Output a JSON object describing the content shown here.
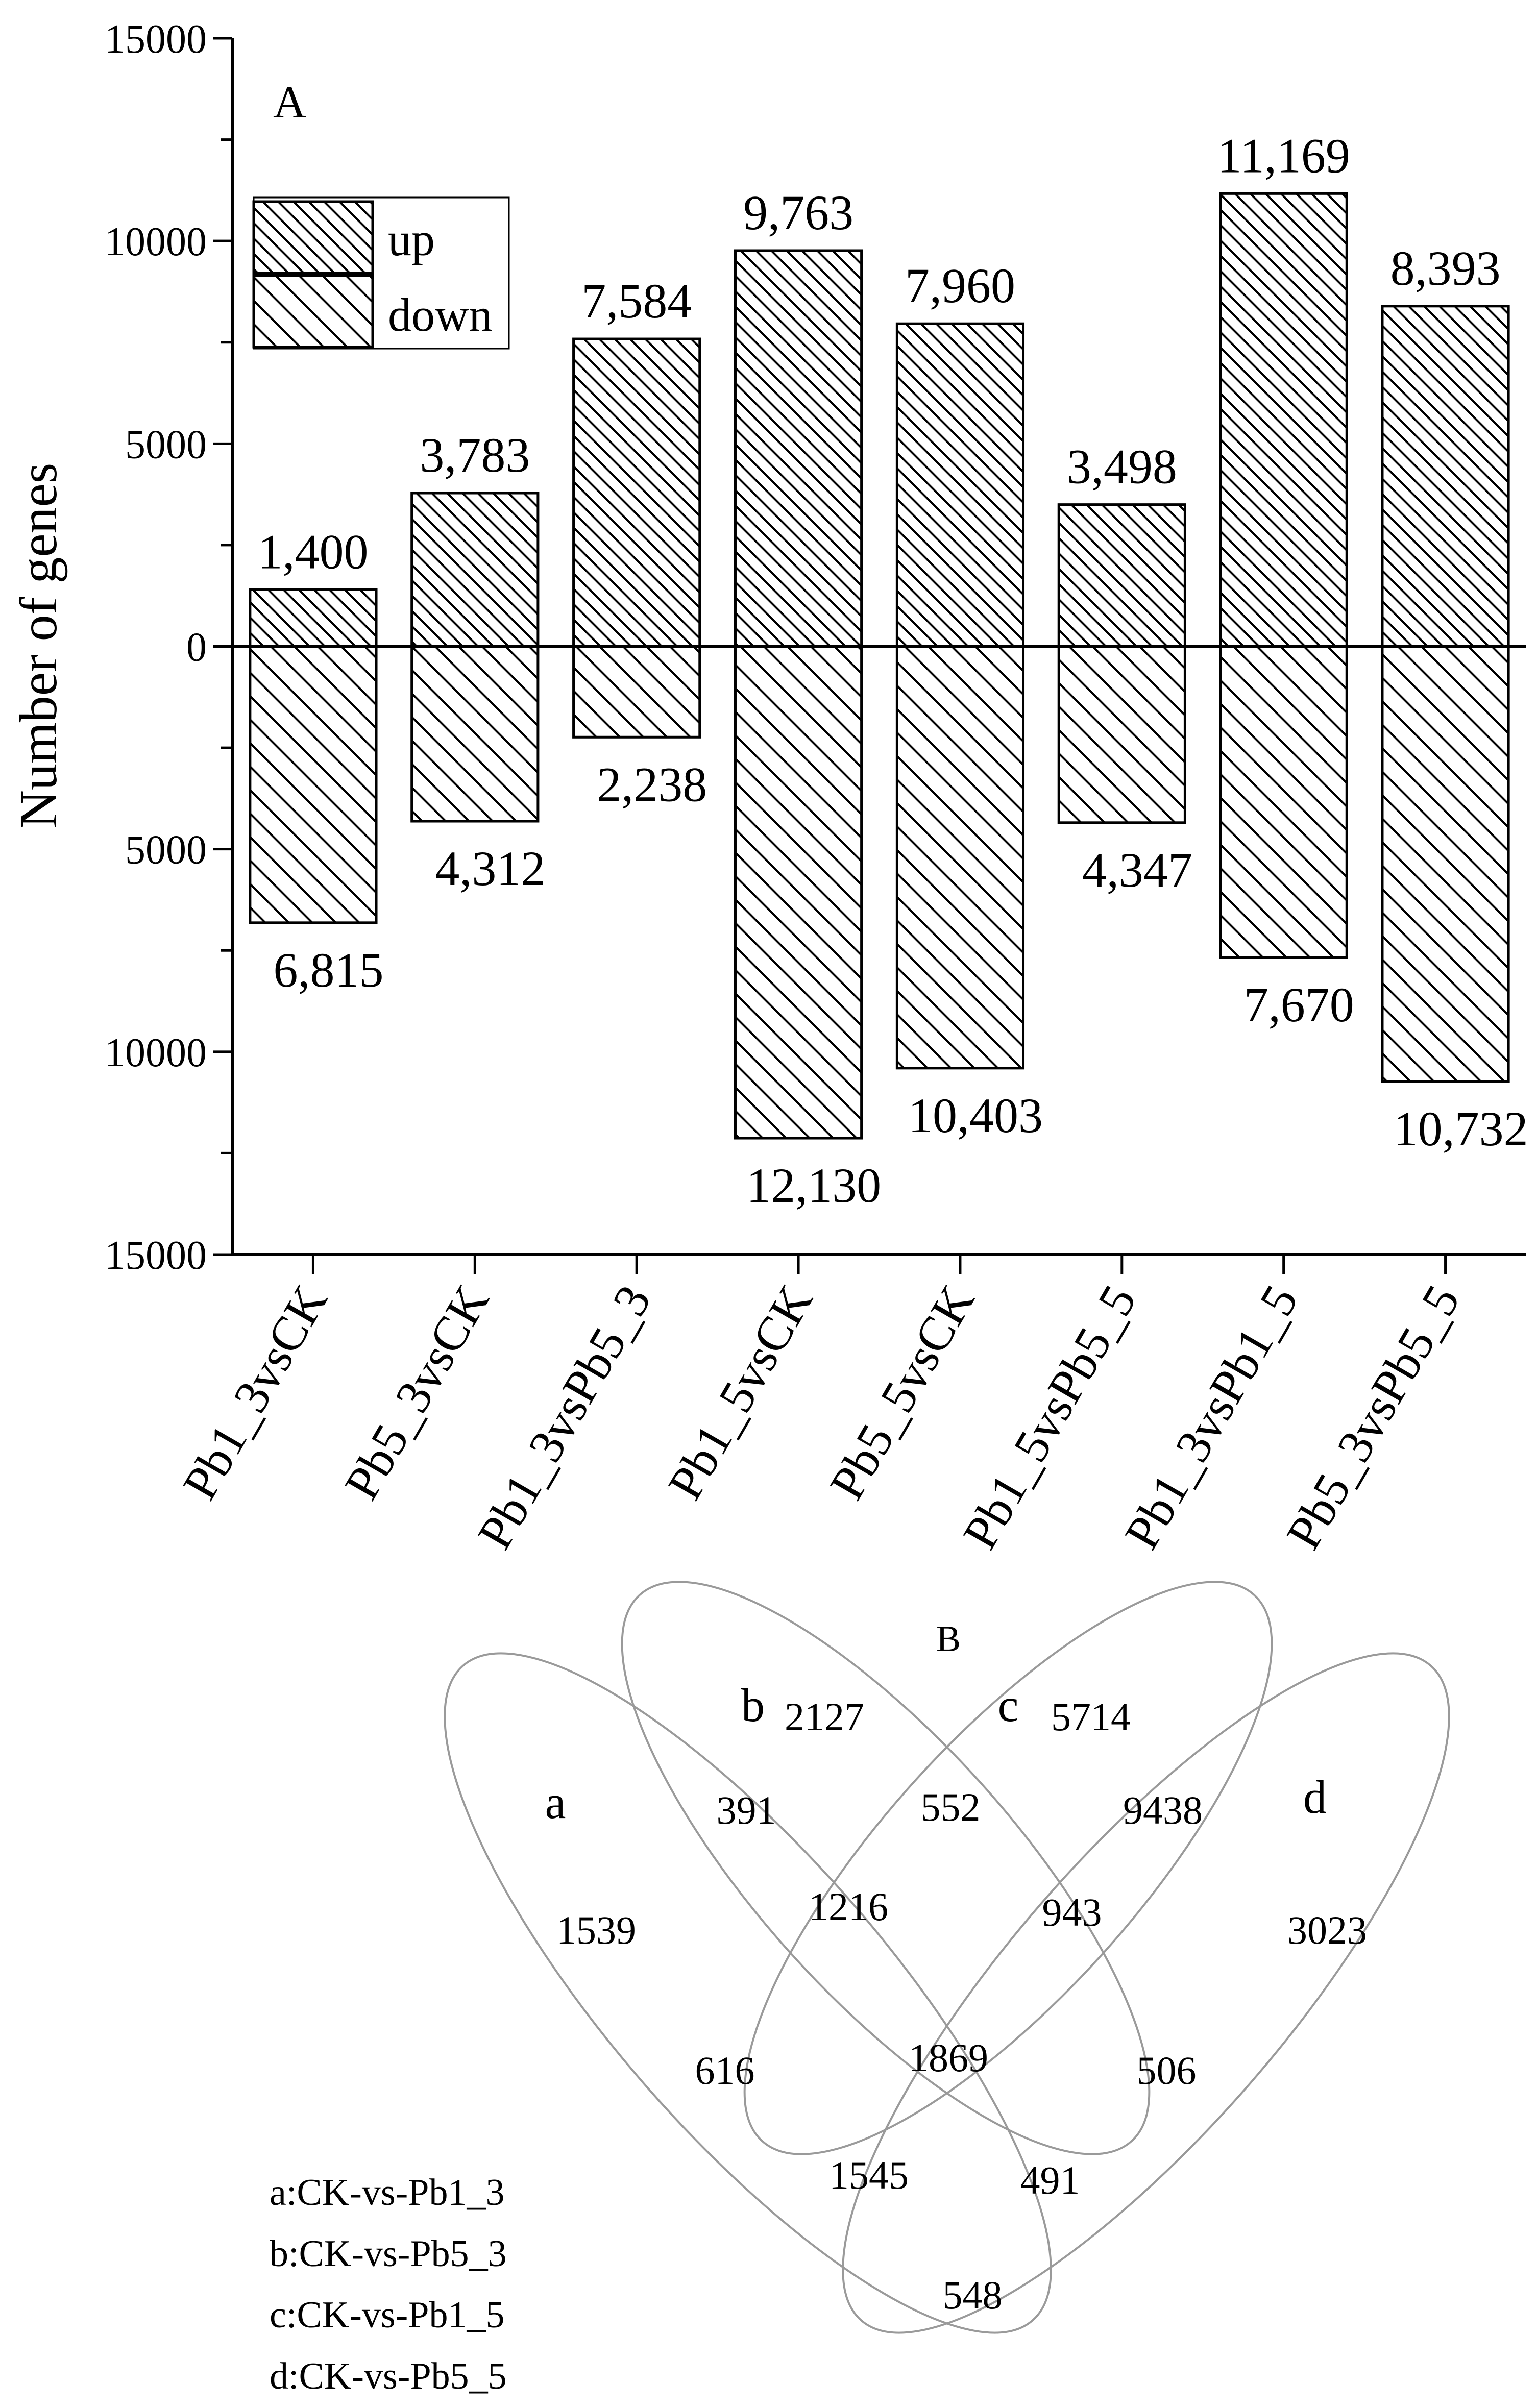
{
  "panel_a_label": "A",
  "panel_b_label": "B",
  "chart_data": [
    {
      "type": "bar",
      "ylabel": "Number of genes",
      "ylim": [
        -15000,
        15000
      ],
      "y_ticks": [
        {
          "value": 15000,
          "label": "15000"
        },
        {
          "value": 10000,
          "label": "10000"
        },
        {
          "value": 5000,
          "label": "5000"
        },
        {
          "value": 0,
          "label": "0"
        },
        {
          "value": -5000,
          "label": "5000"
        },
        {
          "value": -10000,
          "label": "10000"
        },
        {
          "value": -15000,
          "label": "15000"
        }
      ],
      "categories": [
        "Pb1_3vsCK",
        "Pb5_3vsCK",
        "Pb1_3vsPb5_3",
        "Pb1_5vsCK",
        "Pb5_5vsCK",
        "Pb1_5vsPb5_5",
        "Pb1_3vsPb1_5",
        "Pb5_3vsPb5_5"
      ],
      "series": [
        {
          "name": "up",
          "values": [
            1400,
            3783,
            7584,
            9763,
            7960,
            3498,
            11169,
            8393
          ],
          "labels": [
            "1,400",
            "3,783",
            "7,584",
            "9,763",
            "7,960",
            "3,498",
            "11,169",
            "8,393"
          ]
        },
        {
          "name": "down",
          "values": [
            6815,
            4312,
            2238,
            12130,
            10403,
            4347,
            7670,
            10732
          ],
          "labels": [
            "6,815",
            "4,312",
            "2,238",
            "12,130",
            "10,403",
            "4,347",
            "7,670",
            "10,732"
          ]
        }
      ],
      "legend": {
        "position": "top-left"
      },
      "grid": false
    },
    {
      "type": "venn",
      "sets": [
        {
          "id": "a",
          "label": "a",
          "key": "a:CK-vs-Pb1_3"
        },
        {
          "id": "b",
          "label": "b",
          "key": "b:CK-vs-Pb5_3"
        },
        {
          "id": "c",
          "label": "c",
          "key": "c:CK-vs-Pb1_5"
        },
        {
          "id": "d",
          "label": "d",
          "key": "d:CK-vs-Pb5_5"
        }
      ],
      "regions": [
        {
          "sets": "a",
          "value": 1539
        },
        {
          "sets": "b",
          "value": 2127
        },
        {
          "sets": "c",
          "value": 5714
        },
        {
          "sets": "d",
          "value": 3023
        },
        {
          "sets": "ab",
          "value": 391
        },
        {
          "sets": "bc",
          "value": 552
        },
        {
          "sets": "cd",
          "value": 9438
        },
        {
          "sets": "abc",
          "value": 1216
        },
        {
          "sets": "bcd",
          "value": 943
        },
        {
          "sets": "ac",
          "value": 616
        },
        {
          "sets": "abcd",
          "value": 1869
        },
        {
          "sets": "bd",
          "value": 506
        },
        {
          "sets": "acd",
          "value": 1545
        },
        {
          "sets": "abd",
          "value": 491
        },
        {
          "sets": "ad",
          "value": 548
        }
      ]
    }
  ]
}
